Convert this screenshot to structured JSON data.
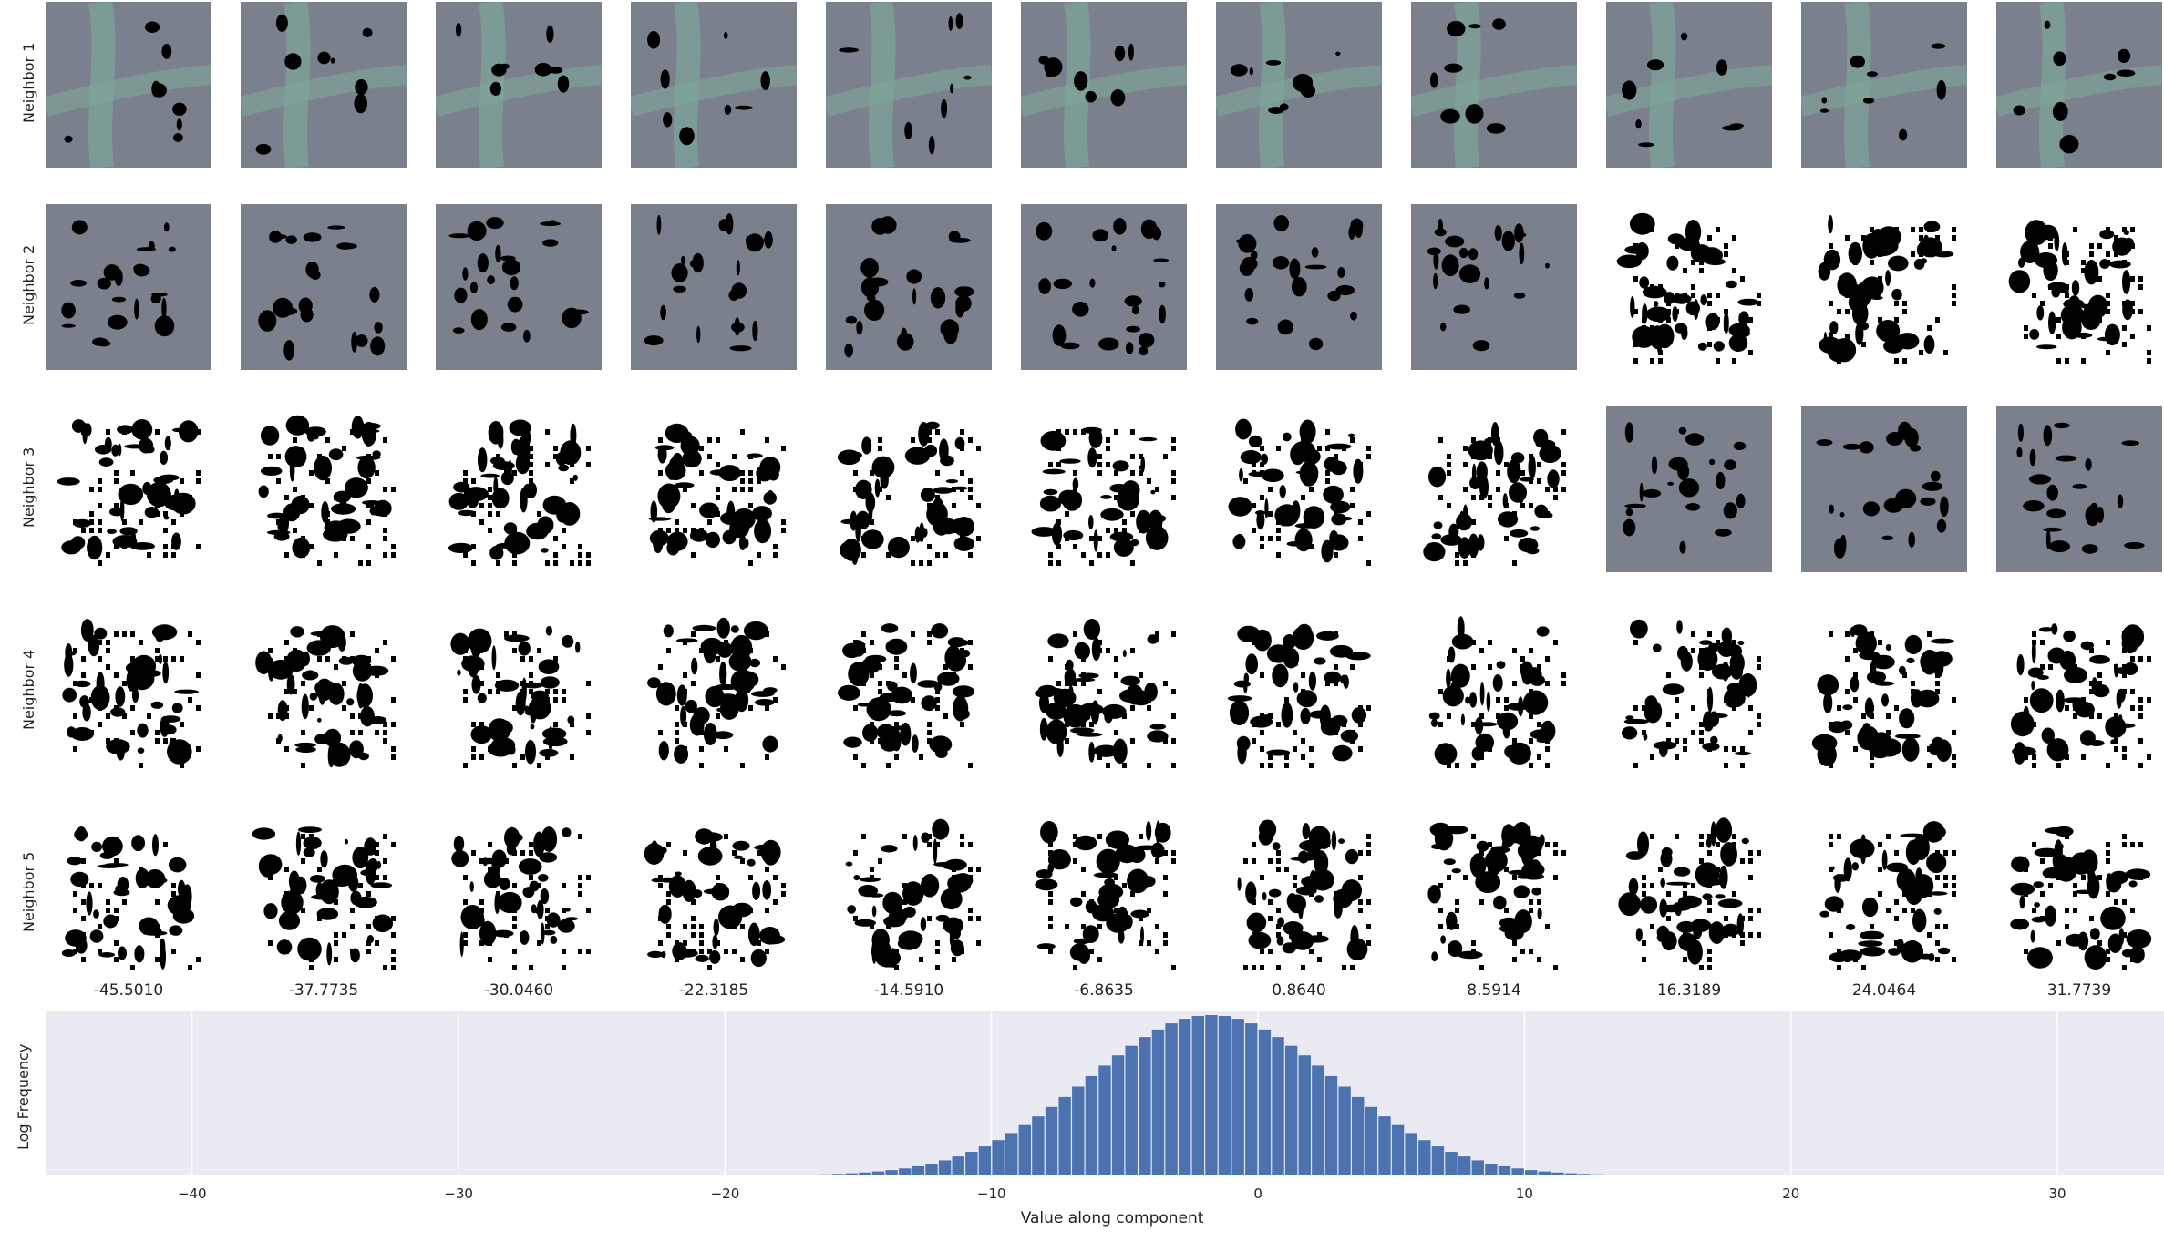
{
  "rows": [
    "Neighbor 1",
    "Neighbor 2",
    "Neighbor 3",
    "Neighbor 4",
    "Neighbor 5"
  ],
  "columns": [
    "-45.5010",
    "-37.7735",
    "-30.0460",
    "-22.3185",
    "-14.5910",
    "-6.8635",
    "0.8640",
    "8.5914",
    "16.3189",
    "24.0464",
    "31.7739"
  ],
  "tile_kinds": [
    [
      "gray-road",
      "gray-road",
      "gray-road",
      "gray-road",
      "gray-road",
      "gray-road",
      "gray-road",
      "gray-road",
      "gray-road",
      "gray-road",
      "gray-road"
    ],
    [
      "gray",
      "gray",
      "gray",
      "gray",
      "gray",
      "gray",
      "gray",
      "gray",
      "white",
      "white",
      "white"
    ],
    [
      "white",
      "white",
      "white",
      "white",
      "white",
      "white",
      "white",
      "white",
      "gray",
      "gray",
      "gray"
    ],
    [
      "white",
      "white",
      "white",
      "white",
      "white",
      "white",
      "white",
      "white",
      "white",
      "white",
      "white"
    ],
    [
      "white",
      "white",
      "white",
      "white",
      "white",
      "white",
      "white",
      "white",
      "white",
      "white",
      "white"
    ]
  ],
  "colors": {
    "gray_tile": "#7b818c",
    "road": "#7fa69a",
    "blob": "#000000",
    "hist_bg": "#eaeaf2",
    "bar": "#4c72b0",
    "grid": "#ffffff"
  },
  "chart_data": {
    "type": "bar",
    "xlabel": "Value along component",
    "ylabel": "Log Frequency",
    "xlim": [
      -45.5,
      34
    ],
    "xticks": [
      -40,
      -30,
      -20,
      -10,
      0,
      10,
      20,
      30
    ],
    "bin_width": 0.5,
    "bin_start": -22,
    "bin_end": 13,
    "peak_x": -1.75,
    "grid": true
  }
}
